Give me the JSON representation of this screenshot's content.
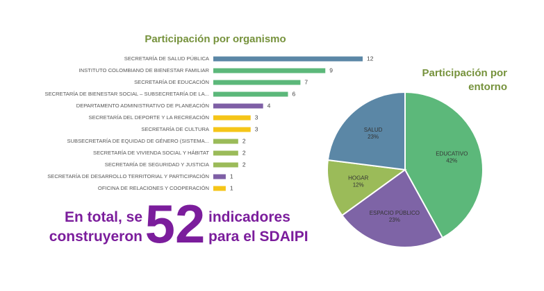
{
  "chart_data": [
    {
      "type": "bar",
      "orientation": "horizontal",
      "title": "Participación por organismo",
      "categories": [
        "SECRETARÍA DE SALUD PÚBLICA",
        "INSTITUTO COLOMBIANO DE BIENESTAR FAMILIAR",
        "SECRETARÍA DE EDUCACIÓN",
        "SECRETARÍA DE BIENESTAR SOCIAL – SUBSECRETARÍA DE LA...",
        "DEPARTAMENTO ADMINISTRATIVO DE PLANEACIÓN",
        "SECRETARÍA DEL DEPORTE Y LA RECREACIÓN",
        "SECRETARÍA DE CULTURA",
        "SUBSECRETARÍA DE EQUIDAD DE GÉNERO (SISTEMA...",
        "SECRETARÍA DE VIVIENDA SOCIAL Y HÁBITAT",
        "SECRETARÍA DE SEGURIDAD Y JUSTICIA",
        "SECRETARÍA DE DESARROLLO TERRITORIAL Y PARTICIPACIÓN",
        "OFICINA DE RELACIONES Y COOPERACIÓN"
      ],
      "values": [
        12,
        9,
        7,
        6,
        4,
        3,
        3,
        2,
        2,
        2,
        1,
        1
      ],
      "colors": [
        "#5b87a6",
        "#5cb87a",
        "#5cb87a",
        "#5cb87a",
        "#7e5fa5",
        "#f5c518",
        "#f5c518",
        "#9bbb59",
        "#9bbb59",
        "#9bbb59",
        "#7e5fa5",
        "#f5c518"
      ]
    },
    {
      "type": "pie",
      "title_lines": [
        "Participación por",
        "entorno"
      ],
      "categories": [
        "EDUCATIVO",
        "ESPACIO PÚBLICO",
        "HOGAR",
        "SALUD"
      ],
      "values": [
        42,
        23,
        12,
        23
      ],
      "value_labels": [
        "42%",
        "23%",
        "12%",
        "23%"
      ],
      "colors": [
        "#5cb87a",
        "#7e64a6",
        "#9bbb59",
        "#5b87a6"
      ]
    }
  ],
  "summary": {
    "left_lines": [
      "En total, se",
      "construyeron"
    ],
    "number": "52",
    "right_lines": [
      "indicadores",
      "para el SDAIPI"
    ]
  }
}
